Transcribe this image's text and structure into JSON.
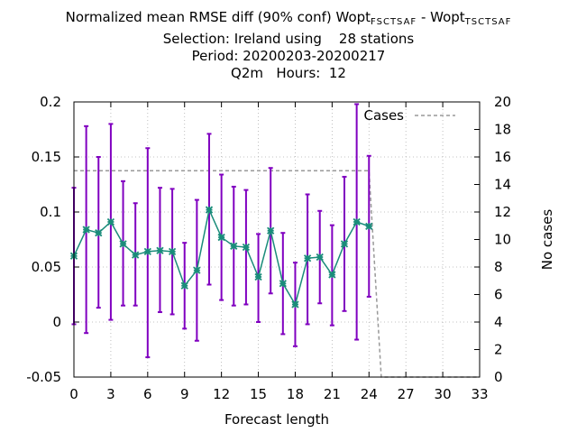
{
  "title": {
    "line1_prefix": "Normalized mean RMSE diff (90% conf) Wopt",
    "line1_sub1": "FSCTSAF",
    "line1_middle": " - Wopt",
    "line1_sub2": "TSCTSAF",
    "line2": "Selection: Ireland using    28 stations",
    "line3": "Period: 20200203-20200217",
    "line4": "Q2m   Hours:  12"
  },
  "chart_data": {
    "type": "line",
    "xlabel": "Forecast length",
    "ylabel": "",
    "y2label": "No cases",
    "xlim": [
      0,
      33
    ],
    "ylim": [
      -0.05,
      0.2
    ],
    "y2lim": [
      0,
      20
    ],
    "xticks": [
      "0",
      "3",
      "6",
      "9",
      "12",
      "15",
      "18",
      "21",
      "24",
      "27",
      "30",
      "33"
    ],
    "yticks": [
      "-0.05",
      "0",
      "0.05",
      "0.1",
      "0.15",
      "0.2"
    ],
    "y2ticks": [
      "0",
      "2",
      "4",
      "6",
      "8",
      "10",
      "12",
      "14",
      "16",
      "18",
      "20"
    ],
    "grid": true,
    "legend": "top-right",
    "series": [
      {
        "kind": "line-errorbars",
        "color": "#1a8c7a",
        "error_color": "#8000c0",
        "points": [
          {
            "x": 0,
            "y": 0.06,
            "lo": -0.002,
            "hi": 0.122
          },
          {
            "x": 1,
            "y": 0.084,
            "lo": -0.01,
            "hi": 0.178
          },
          {
            "x": 2,
            "y": 0.081,
            "lo": 0.013,
            "hi": 0.15
          },
          {
            "x": 3,
            "y": 0.091,
            "lo": 0.002,
            "hi": 0.18
          },
          {
            "x": 4,
            "y": 0.071,
            "lo": 0.015,
            "hi": 0.128
          },
          {
            "x": 5,
            "y": 0.061,
            "lo": 0.015,
            "hi": 0.108
          },
          {
            "x": 6,
            "y": 0.064,
            "lo": -0.032,
            "hi": 0.158
          },
          {
            "x": 7,
            "y": 0.065,
            "lo": 0.009,
            "hi": 0.122
          },
          {
            "x": 8,
            "y": 0.064,
            "lo": 0.007,
            "hi": 0.121
          },
          {
            "x": 9,
            "y": 0.033,
            "lo": -0.006,
            "hi": 0.072
          },
          {
            "x": 10,
            "y": 0.047,
            "lo": -0.017,
            "hi": 0.111
          },
          {
            "x": 11,
            "y": 0.102,
            "lo": 0.034,
            "hi": 0.171
          },
          {
            "x": 12,
            "y": 0.077,
            "lo": 0.02,
            "hi": 0.134
          },
          {
            "x": 13,
            "y": 0.069,
            "lo": 0.015,
            "hi": 0.123
          },
          {
            "x": 14,
            "y": 0.068,
            "lo": 0.016,
            "hi": 0.12
          },
          {
            "x": 15,
            "y": 0.041,
            "lo": 0.0,
            "hi": 0.08
          },
          {
            "x": 16,
            "y": 0.083,
            "lo": 0.026,
            "hi": 0.14
          },
          {
            "x": 17,
            "y": 0.035,
            "lo": -0.011,
            "hi": 0.081
          },
          {
            "x": 18,
            "y": 0.016,
            "lo": -0.022,
            "hi": 0.054
          },
          {
            "x": 19,
            "y": 0.058,
            "lo": -0.002,
            "hi": 0.116
          },
          {
            "x": 20,
            "y": 0.059,
            "lo": 0.017,
            "hi": 0.101
          },
          {
            "x": 21,
            "y": 0.043,
            "lo": -0.003,
            "hi": 0.088
          },
          {
            "x": 22,
            "y": 0.071,
            "lo": 0.01,
            "hi": 0.132
          },
          {
            "x": 23,
            "y": 0.091,
            "lo": -0.016,
            "hi": 0.198
          },
          {
            "x": 24,
            "y": 0.087,
            "lo": 0.023,
            "hi": 0.151
          }
        ]
      },
      {
        "name": "Cases",
        "kind": "dashed-step",
        "axis": "y2",
        "color": "#999999",
        "x": [
          0,
          24,
          25,
          33
        ],
        "values": [
          15,
          15,
          0,
          0
        ]
      }
    ]
  }
}
